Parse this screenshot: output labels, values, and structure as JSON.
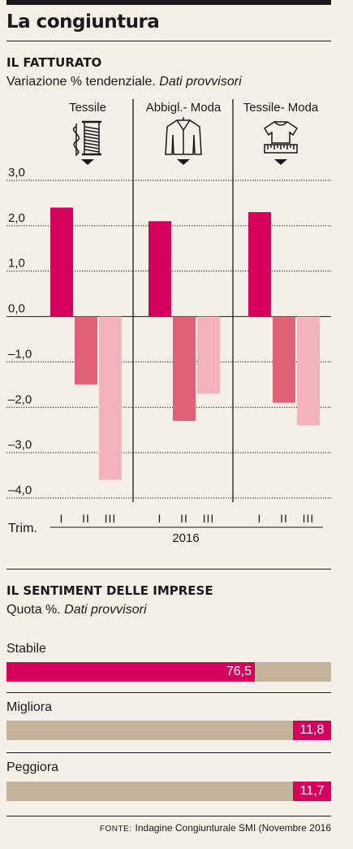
{
  "header": {
    "title": "La congiuntura"
  },
  "fatturato": {
    "title": "IL FATTURATO",
    "subtitle_main": "Variazione % tendenziale.",
    "subtitle_italic": "Dati provvisori"
  },
  "chart_data": [
    {
      "type": "bar",
      "title": "IL FATTURATO",
      "ylim": [
        -4,
        3
      ],
      "yticks": [
        3,
        2,
        1,
        0,
        -1,
        -2,
        -3,
        -4
      ],
      "ytick_labels": [
        "3,0",
        "2,0",
        "1,0",
        "0,0",
        "–1,0",
        "–2,0",
        "–3,0",
        "–4,0"
      ],
      "grid": true,
      "x_axis_label": "Trim.",
      "year_label": "2016",
      "quarters": [
        "I",
        "II",
        "III"
      ],
      "groups": [
        {
          "name": "Tessile",
          "icon": "thread-spool-icon",
          "values": [
            2.4,
            -1.5,
            -3.6
          ]
        },
        {
          "name": "Abbigl.- Moda",
          "icon": "jacket-icon",
          "values": [
            2.1,
            -2.3,
            -1.7
          ]
        },
        {
          "name": "Tessile- Moda",
          "icon": "tshirt-ruler-icon",
          "values": [
            2.3,
            -1.9,
            -2.4
          ]
        }
      ],
      "colors": [
        "#d6005c",
        "#e06078",
        "#f2b3ba"
      ]
    },
    {
      "type": "bar",
      "title": "IL SENTIMENT DELLE IMPRESE",
      "orientation": "horizontal",
      "unit": "%",
      "categories": [
        "Stabile",
        "Migliora",
        "Peggiora"
      ],
      "values": [
        76.5,
        11.8,
        11.7
      ],
      "value_labels": [
        "76,5",
        "11,8",
        "11,7"
      ],
      "xlim": [
        0,
        100
      ]
    }
  ],
  "sentiment": {
    "title": "IL SENTIMENT DELLE IMPRESE",
    "subtitle_main": "Quota %.",
    "subtitle_italic": "Dati provvisori",
    "colors": {
      "fill": "#d6005c",
      "track": "#c4b39b"
    }
  },
  "source": {
    "label": "FONTE:",
    "text": "Indagine Congiunturale SMI (Novembre 2016"
  }
}
